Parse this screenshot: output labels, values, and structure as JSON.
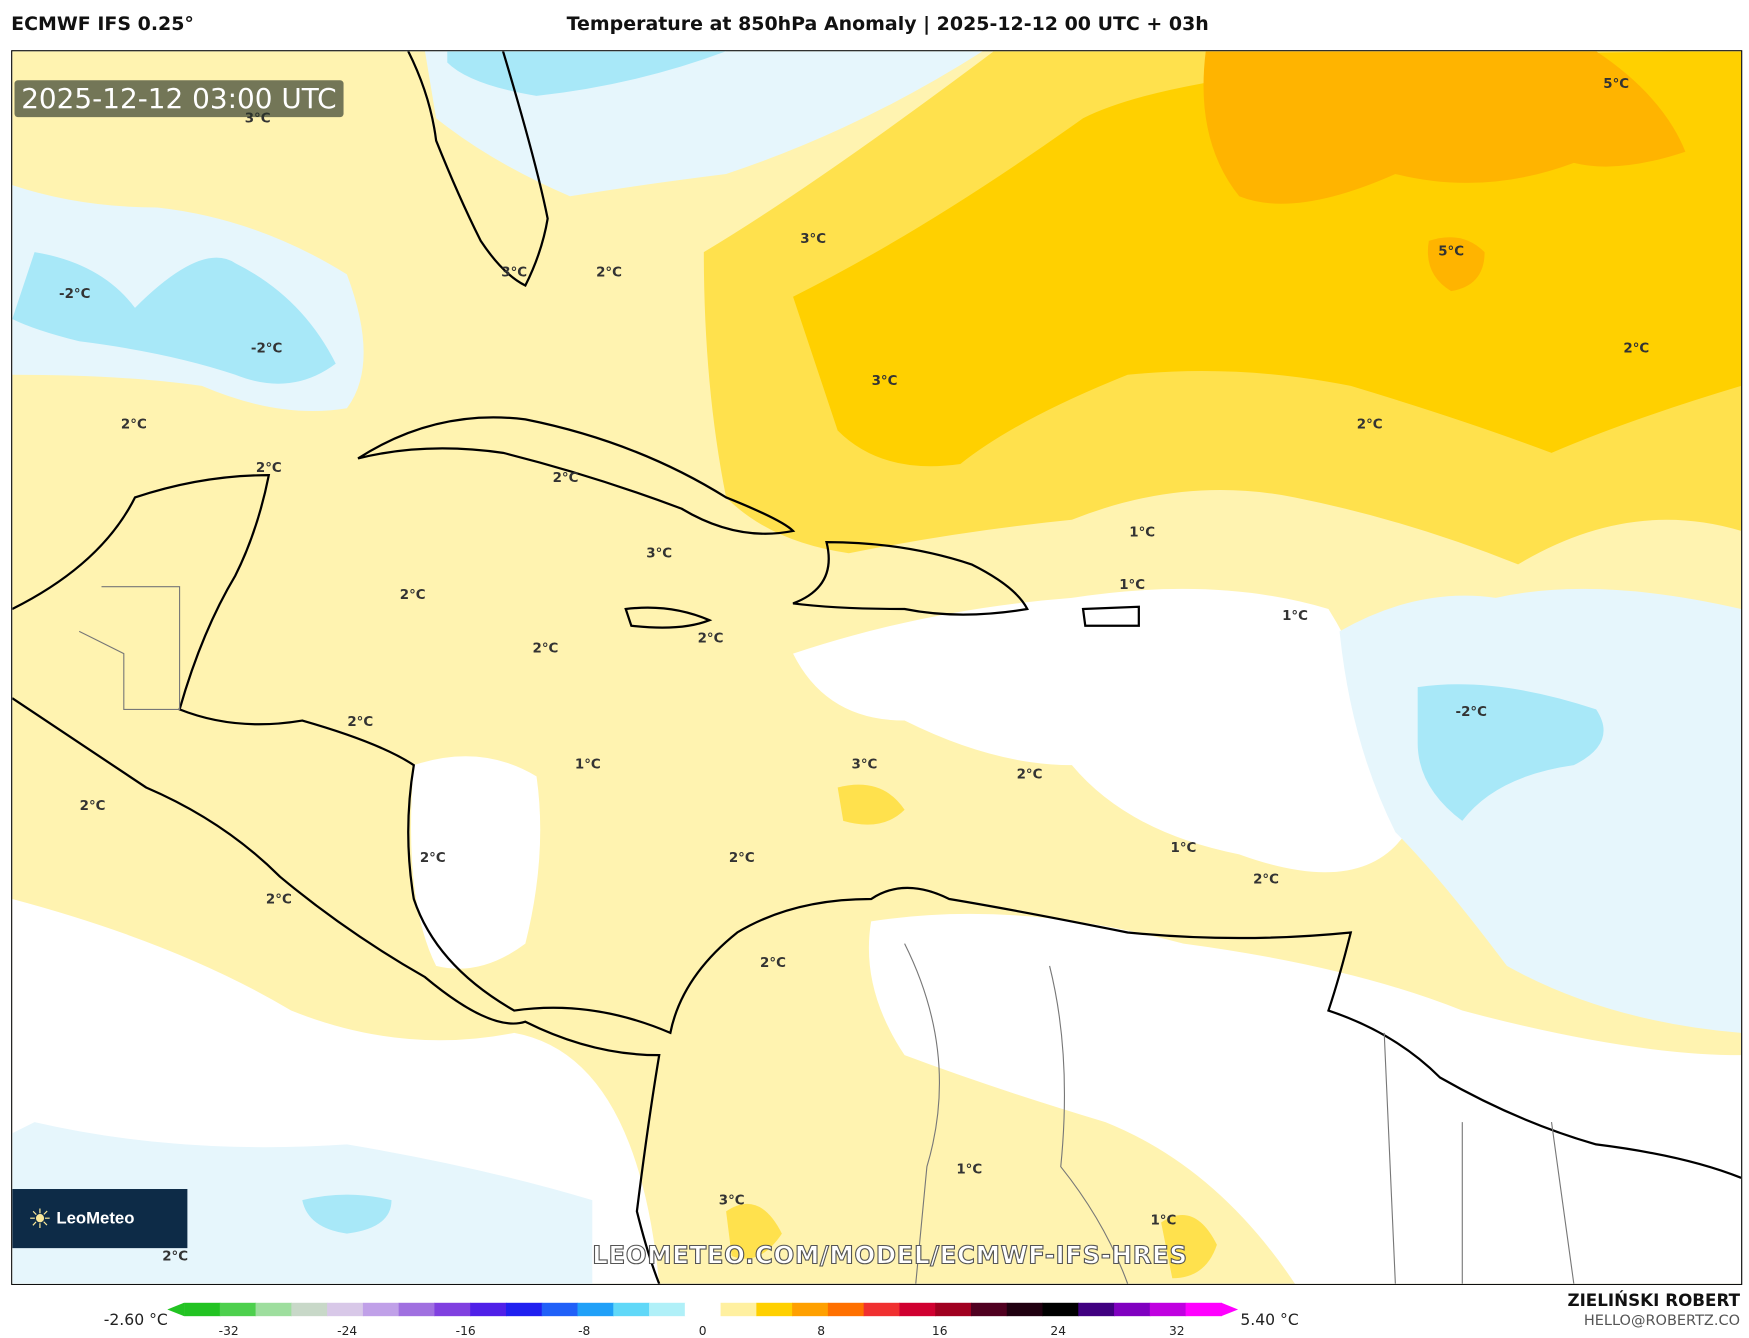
{
  "header": {
    "model": "ECMWF IFS 0.25°",
    "title": "Temperature at 850hPa Anomaly | 2025-12-12 00 UTC + 03h"
  },
  "map": {
    "valid_time": "2025-12-12 03:00 UTC",
    "watermark": "LEOMETEO.COM/MODEL/ECMWF-IFS-HRES",
    "logo_text": "LeoMeteo",
    "contour_labels": [
      "3°C",
      "5°C",
      "-2°C",
      "-2°C",
      "3°C",
      "2°C",
      "3°C",
      "5°C",
      "2°C",
      "3°C",
      "2°C",
      "2°C",
      "2°C",
      "2°C",
      "1°C",
      "3°C",
      "1°C",
      "2°C",
      "2°C",
      "2°C",
      "1°C",
      "-2°C",
      "2°C",
      "3°C",
      "2°C",
      "1°C",
      "2°C",
      "2°C",
      "2°C",
      "2°C",
      "2°C",
      "1°C",
      "2°C",
      "1°C",
      "3°C",
      "1°C",
      "2°C"
    ],
    "colors": {
      "pale_yellow": "#fff3b0",
      "yellow": "#ffe14d",
      "gold": "#ffd000",
      "orange": "#ffb400",
      "pale_blue": "#e6f6fc",
      "light_blue": "#a8e8f8"
    }
  },
  "colorbar": {
    "min_label": "-2.60 °C",
    "max_label": "5.40 °C",
    "ticks": [
      "-32",
      "-24",
      "-16",
      "-8",
      "0",
      "8",
      "16",
      "24",
      "32"
    ],
    "colors": [
      "#22c322",
      "#4dd04d",
      "#9ede9e",
      "#c8d8c8",
      "#d8c8e8",
      "#c0a0e8",
      "#a070e0",
      "#8040e0",
      "#5020e8",
      "#2020f0",
      "#2060f8",
      "#20a0f8",
      "#60d8f8",
      "#b0f0f8",
      "#ffffff",
      "#fff0a0",
      "#ffd000",
      "#ffa000",
      "#ff7000",
      "#f03030",
      "#d00030",
      "#a00020",
      "#500020",
      "#200010",
      "#000000",
      "#400080",
      "#8000c0",
      "#c000e0",
      "#ff00ff"
    ]
  },
  "footer": {
    "author": "ZIELIŃSKI ROBERT",
    "email": "HELLO@ROBERTZ.CO"
  }
}
